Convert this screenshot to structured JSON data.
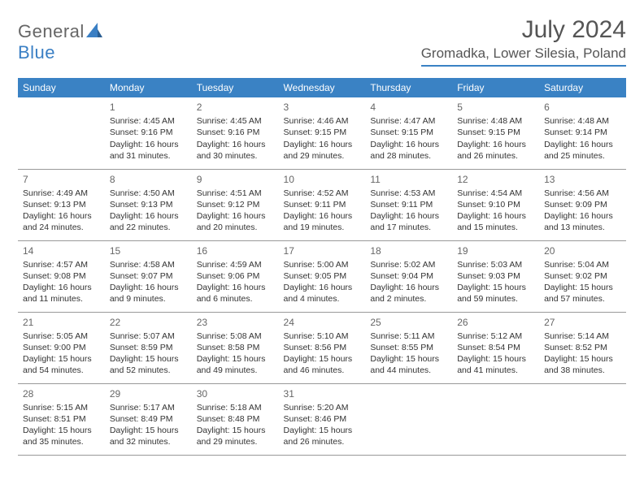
{
  "brand": {
    "part1": "General",
    "part2": "Blue"
  },
  "title": "July 2024",
  "location": "Gromadka, Lower Silesia, Poland",
  "colors": {
    "header_bg": "#3a82c4",
    "header_text": "#ffffff",
    "body_text": "#333333",
    "rule": "#999999",
    "background": "#ffffff"
  },
  "day_names": [
    "Sunday",
    "Monday",
    "Tuesday",
    "Wednesday",
    "Thursday",
    "Friday",
    "Saturday"
  ],
  "weeks": [
    [
      null,
      {
        "n": "1",
        "sr": "Sunrise: 4:45 AM",
        "ss": "Sunset: 9:16 PM",
        "dl": "Daylight: 16 hours and 31 minutes."
      },
      {
        "n": "2",
        "sr": "Sunrise: 4:45 AM",
        "ss": "Sunset: 9:16 PM",
        "dl": "Daylight: 16 hours and 30 minutes."
      },
      {
        "n": "3",
        "sr": "Sunrise: 4:46 AM",
        "ss": "Sunset: 9:15 PM",
        "dl": "Daylight: 16 hours and 29 minutes."
      },
      {
        "n": "4",
        "sr": "Sunrise: 4:47 AM",
        "ss": "Sunset: 9:15 PM",
        "dl": "Daylight: 16 hours and 28 minutes."
      },
      {
        "n": "5",
        "sr": "Sunrise: 4:48 AM",
        "ss": "Sunset: 9:15 PM",
        "dl": "Daylight: 16 hours and 26 minutes."
      },
      {
        "n": "6",
        "sr": "Sunrise: 4:48 AM",
        "ss": "Sunset: 9:14 PM",
        "dl": "Daylight: 16 hours and 25 minutes."
      }
    ],
    [
      {
        "n": "7",
        "sr": "Sunrise: 4:49 AM",
        "ss": "Sunset: 9:13 PM",
        "dl": "Daylight: 16 hours and 24 minutes."
      },
      {
        "n": "8",
        "sr": "Sunrise: 4:50 AM",
        "ss": "Sunset: 9:13 PM",
        "dl": "Daylight: 16 hours and 22 minutes."
      },
      {
        "n": "9",
        "sr": "Sunrise: 4:51 AM",
        "ss": "Sunset: 9:12 PM",
        "dl": "Daylight: 16 hours and 20 minutes."
      },
      {
        "n": "10",
        "sr": "Sunrise: 4:52 AM",
        "ss": "Sunset: 9:11 PM",
        "dl": "Daylight: 16 hours and 19 minutes."
      },
      {
        "n": "11",
        "sr": "Sunrise: 4:53 AM",
        "ss": "Sunset: 9:11 PM",
        "dl": "Daylight: 16 hours and 17 minutes."
      },
      {
        "n": "12",
        "sr": "Sunrise: 4:54 AM",
        "ss": "Sunset: 9:10 PM",
        "dl": "Daylight: 16 hours and 15 minutes."
      },
      {
        "n": "13",
        "sr": "Sunrise: 4:56 AM",
        "ss": "Sunset: 9:09 PM",
        "dl": "Daylight: 16 hours and 13 minutes."
      }
    ],
    [
      {
        "n": "14",
        "sr": "Sunrise: 4:57 AM",
        "ss": "Sunset: 9:08 PM",
        "dl": "Daylight: 16 hours and 11 minutes."
      },
      {
        "n": "15",
        "sr": "Sunrise: 4:58 AM",
        "ss": "Sunset: 9:07 PM",
        "dl": "Daylight: 16 hours and 9 minutes."
      },
      {
        "n": "16",
        "sr": "Sunrise: 4:59 AM",
        "ss": "Sunset: 9:06 PM",
        "dl": "Daylight: 16 hours and 6 minutes."
      },
      {
        "n": "17",
        "sr": "Sunrise: 5:00 AM",
        "ss": "Sunset: 9:05 PM",
        "dl": "Daylight: 16 hours and 4 minutes."
      },
      {
        "n": "18",
        "sr": "Sunrise: 5:02 AM",
        "ss": "Sunset: 9:04 PM",
        "dl": "Daylight: 16 hours and 2 minutes."
      },
      {
        "n": "19",
        "sr": "Sunrise: 5:03 AM",
        "ss": "Sunset: 9:03 PM",
        "dl": "Daylight: 15 hours and 59 minutes."
      },
      {
        "n": "20",
        "sr": "Sunrise: 5:04 AM",
        "ss": "Sunset: 9:02 PM",
        "dl": "Daylight: 15 hours and 57 minutes."
      }
    ],
    [
      {
        "n": "21",
        "sr": "Sunrise: 5:05 AM",
        "ss": "Sunset: 9:00 PM",
        "dl": "Daylight: 15 hours and 54 minutes."
      },
      {
        "n": "22",
        "sr": "Sunrise: 5:07 AM",
        "ss": "Sunset: 8:59 PM",
        "dl": "Daylight: 15 hours and 52 minutes."
      },
      {
        "n": "23",
        "sr": "Sunrise: 5:08 AM",
        "ss": "Sunset: 8:58 PM",
        "dl": "Daylight: 15 hours and 49 minutes."
      },
      {
        "n": "24",
        "sr": "Sunrise: 5:10 AM",
        "ss": "Sunset: 8:56 PM",
        "dl": "Daylight: 15 hours and 46 minutes."
      },
      {
        "n": "25",
        "sr": "Sunrise: 5:11 AM",
        "ss": "Sunset: 8:55 PM",
        "dl": "Daylight: 15 hours and 44 minutes."
      },
      {
        "n": "26",
        "sr": "Sunrise: 5:12 AM",
        "ss": "Sunset: 8:54 PM",
        "dl": "Daylight: 15 hours and 41 minutes."
      },
      {
        "n": "27",
        "sr": "Sunrise: 5:14 AM",
        "ss": "Sunset: 8:52 PM",
        "dl": "Daylight: 15 hours and 38 minutes."
      }
    ],
    [
      {
        "n": "28",
        "sr": "Sunrise: 5:15 AM",
        "ss": "Sunset: 8:51 PM",
        "dl": "Daylight: 15 hours and 35 minutes."
      },
      {
        "n": "29",
        "sr": "Sunrise: 5:17 AM",
        "ss": "Sunset: 8:49 PM",
        "dl": "Daylight: 15 hours and 32 minutes."
      },
      {
        "n": "30",
        "sr": "Sunrise: 5:18 AM",
        "ss": "Sunset: 8:48 PM",
        "dl": "Daylight: 15 hours and 29 minutes."
      },
      {
        "n": "31",
        "sr": "Sunrise: 5:20 AM",
        "ss": "Sunset: 8:46 PM",
        "dl": "Daylight: 15 hours and 26 minutes."
      },
      null,
      null,
      null
    ]
  ]
}
